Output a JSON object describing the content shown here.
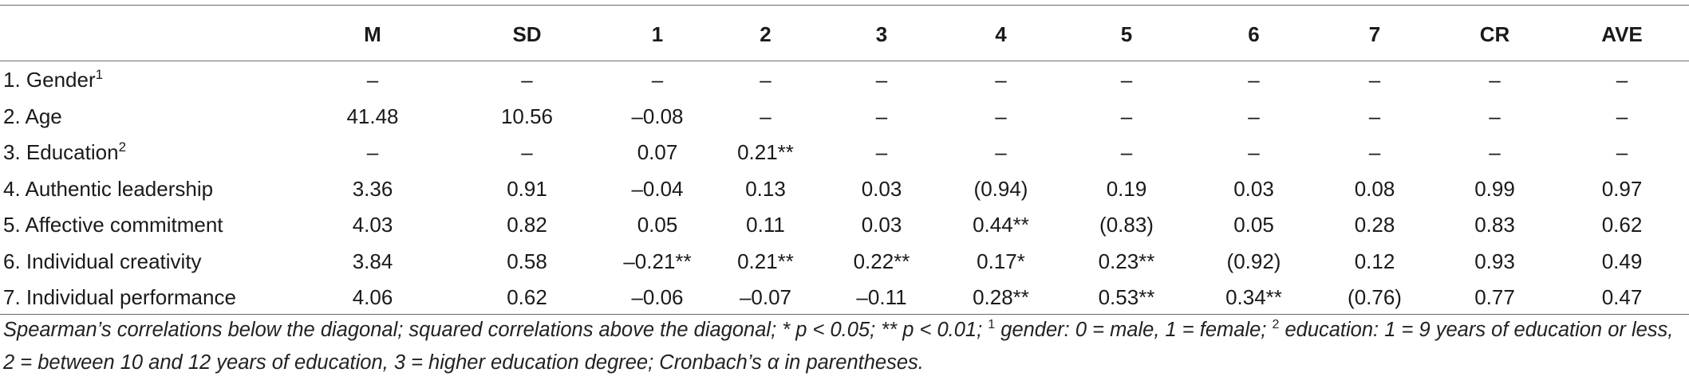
{
  "table": {
    "columns": [
      "",
      "M",
      "SD",
      "1",
      "2",
      "3",
      "4",
      "5",
      "6",
      "7",
      "CR",
      "AVE"
    ],
    "rows": [
      {
        "label": "1. Gender",
        "sup": "1",
        "cells": [
          "–",
          "–",
          "–",
          "–",
          "–",
          "–",
          "–",
          "–",
          "–",
          "–",
          "–"
        ]
      },
      {
        "label": "2. Age",
        "sup": "",
        "cells": [
          "41.48",
          "10.56",
          "–0.08",
          "–",
          "–",
          "–",
          "–",
          "–",
          "–",
          "–",
          "–"
        ]
      },
      {
        "label": "3. Education",
        "sup": "2",
        "cells": [
          "–",
          "–",
          "0.07",
          "0.21**",
          "–",
          "–",
          "–",
          "–",
          "–",
          "–",
          "–"
        ]
      },
      {
        "label": "4. Authentic leadership",
        "sup": "",
        "cells": [
          "3.36",
          "0.91",
          "–0.04",
          "0.13",
          "0.03",
          "(0.94)",
          "0.19",
          "0.03",
          "0.08",
          "0.99",
          "0.97"
        ]
      },
      {
        "label": "5. Affective commitment",
        "sup": "",
        "cells": [
          "4.03",
          "0.82",
          "0.05",
          "0.11",
          "0.03",
          "0.44**",
          "(0.83)",
          "0.05",
          "0.28",
          "0.83",
          "0.62"
        ]
      },
      {
        "label": "6. Individual creativity",
        "sup": "",
        "cells": [
          "3.84",
          "0.58",
          "–0.21**",
          "0.21**",
          "0.22**",
          "0.17*",
          "0.23**",
          "(0.92)",
          "0.12",
          "0.93",
          "0.49"
        ]
      },
      {
        "label": "7. Individual performance",
        "sup": "",
        "cells": [
          "4.06",
          "0.62",
          "–0.06",
          "–0.07",
          "–0.11",
          "0.28**",
          "0.53**",
          "0.34**",
          "(0.76)",
          "0.77",
          "0.47"
        ]
      }
    ]
  },
  "note": {
    "part1": "Spearman’s correlations below the diagonal; squared correlations above the diagonal; * p < 0.05; ** p < 0.01; ",
    "sup1": "1",
    "part2": " gender: 0 = male, 1 = female; ",
    "sup2": "2",
    "part3": " education: 1 = 9 years of education or less, 2 = between 10 and 12 years of education, 3 = higher education degree; Cronbach’s α in parentheses."
  }
}
